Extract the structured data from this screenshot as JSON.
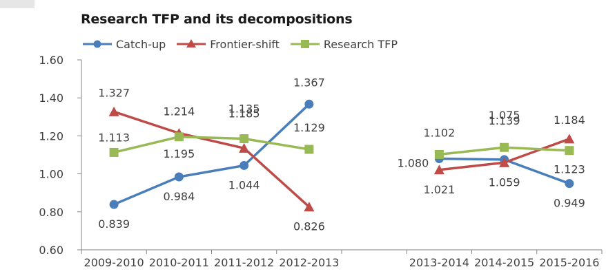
{
  "chart_data": {
    "type": "line",
    "title": "Research TFP and its decompositions",
    "categories": [
      "2009-2010",
      "2010-2011",
      "2011-2012",
      "2012-2013",
      "",
      "2013-2014",
      "2014-2015",
      "2015-2016"
    ],
    "ylim": [
      0.6,
      1.6
    ],
    "yticks": [
      "0.60",
      "0.80",
      "1.00",
      "1.20",
      "1.40",
      "1.60"
    ],
    "legend_position": "top-left",
    "series": [
      {
        "name": "Catch-up",
        "color": "#4a7ebb",
        "marker": "circle",
        "segments": [
          [
            0.839,
            0.984,
            1.044,
            1.367
          ],
          [
            1.08,
            1.075,
            0.949
          ]
        ],
        "labels": [
          "0.839",
          "0.984",
          "1.044",
          "1.367",
          "1.080",
          "1.075",
          "0.949"
        ]
      },
      {
        "name": "Frontier-shift",
        "color": "#be4b48",
        "marker": "triangle",
        "segments": [
          [
            1.327,
            1.214,
            1.135,
            0.826
          ],
          [
            1.021,
            1.059,
            1.184
          ]
        ],
        "labels": [
          "1.327",
          "1.214",
          "1.135",
          "0.826",
          "1.021",
          "1.059",
          "1.184"
        ]
      },
      {
        "name": "Research TFP",
        "color": "#98b954",
        "marker": "square",
        "segments": [
          [
            1.113,
            1.195,
            1.185,
            1.129
          ],
          [
            1.102,
            1.139,
            1.123
          ]
        ],
        "labels": [
          "1.113",
          "1.195",
          "1.185",
          "1.129",
          "1.102",
          "1.139",
          "1.123"
        ]
      }
    ]
  }
}
